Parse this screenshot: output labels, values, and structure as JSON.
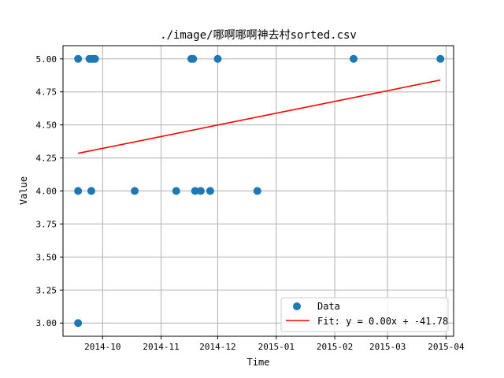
{
  "chart_data": {
    "type": "scatter",
    "title": "./image/哪啊哪啊神去村sorted.csv",
    "xlabel": "Time",
    "ylabel": "Value",
    "x_start": "2014-09-10",
    "x_end": "2015-04-05",
    "ylim": [
      2.9,
      5.1
    ],
    "y_ticks": [
      3.0,
      3.25,
      3.5,
      3.75,
      4.0,
      4.25,
      4.5,
      4.75,
      5.0
    ],
    "x_ticks": [
      {
        "date": "2014-10-01",
        "label": "2014-10"
      },
      {
        "date": "2014-11-01",
        "label": "2014-11"
      },
      {
        "date": "2014-12-01",
        "label": "2014-12"
      },
      {
        "date": "2015-01-01",
        "label": "2015-01"
      },
      {
        "date": "2015-02-01",
        "label": "2015-02"
      },
      {
        "date": "2015-03-01",
        "label": "2015-03"
      },
      {
        "date": "2015-04-01",
        "label": "2015-04"
      }
    ],
    "grid": true,
    "legend_position": "bottom-right",
    "series": [
      {
        "name": "Data",
        "kind": "scatter",
        "color": "#1f77b4",
        "points": [
          {
            "x": "2014-09-18",
            "y": 5.0
          },
          {
            "x": "2014-09-18",
            "y": 4.0
          },
          {
            "x": "2014-09-18",
            "y": 3.0
          },
          {
            "x": "2014-09-24",
            "y": 5.0
          },
          {
            "x": "2014-09-25",
            "y": 5.0
          },
          {
            "x": "2014-09-25",
            "y": 4.0
          },
          {
            "x": "2014-09-26",
            "y": 5.0
          },
          {
            "x": "2014-09-27",
            "y": 5.0
          },
          {
            "x": "2014-10-18",
            "y": 4.0
          },
          {
            "x": "2014-11-09",
            "y": 4.0
          },
          {
            "x": "2014-11-17",
            "y": 5.0
          },
          {
            "x": "2014-11-18",
            "y": 5.0
          },
          {
            "x": "2014-11-19",
            "y": 4.0
          },
          {
            "x": "2014-11-22",
            "y": 4.0
          },
          {
            "x": "2014-11-27",
            "y": 4.0
          },
          {
            "x": "2014-12-01",
            "y": 5.0
          },
          {
            "x": "2014-12-22",
            "y": 4.0
          },
          {
            "x": "2015-02-11",
            "y": 5.0
          },
          {
            "x": "2015-03-29",
            "y": 5.0
          }
        ]
      },
      {
        "name": "Fit: y = 0.00x + -41.78",
        "kind": "line",
        "color": "#ff0000",
        "points": [
          {
            "x": "2014-09-18",
            "y": 4.285
          },
          {
            "x": "2015-03-29",
            "y": 4.84
          }
        ]
      }
    ]
  }
}
